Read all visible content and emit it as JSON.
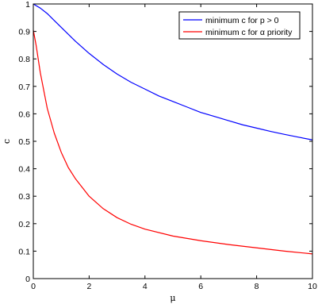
{
  "chart_data": {
    "type": "line",
    "xlabel": "μ",
    "ylabel": "c",
    "xlim": [
      0,
      10
    ],
    "ylim": [
      0,
      1
    ],
    "x_ticks": [
      "0",
      "2",
      "4",
      "6",
      "8",
      "10"
    ],
    "y_ticks": [
      "0",
      "0.1",
      "0.2",
      "0.3",
      "0.4",
      "0.5",
      "0.6",
      "0.7",
      "0.8",
      "0.9",
      "1"
    ],
    "grid": false,
    "legend_position": "top-right",
    "series": [
      {
        "name": "minimum c for p > 0",
        "color": "#0000ff",
        "x": [
          0,
          0.25,
          0.5,
          0.75,
          1,
          1.5,
          2,
          2.5,
          3,
          3.5,
          4,
          4.5,
          5,
          5.5,
          6,
          6.5,
          7,
          7.5,
          8,
          8.5,
          9,
          9.5,
          10
        ],
        "y": [
          1.0,
          0.985,
          0.965,
          0.94,
          0.915,
          0.865,
          0.82,
          0.78,
          0.745,
          0.715,
          0.69,
          0.665,
          0.645,
          0.625,
          0.605,
          0.59,
          0.575,
          0.56,
          0.548,
          0.536,
          0.525,
          0.515,
          0.505
        ]
      },
      {
        "name": "minimum c for α priority",
        "color": "#ff0000",
        "x": [
          0,
          0.1,
          0.25,
          0.5,
          0.75,
          1,
          1.25,
          1.5,
          2,
          2.5,
          3,
          3.5,
          4,
          5,
          6,
          7,
          8,
          9,
          10
        ],
        "y": [
          0.905,
          0.85,
          0.75,
          0.62,
          0.53,
          0.46,
          0.405,
          0.365,
          0.3,
          0.255,
          0.222,
          0.198,
          0.18,
          0.155,
          0.138,
          0.124,
          0.112,
          0.1,
          0.09
        ]
      }
    ]
  }
}
